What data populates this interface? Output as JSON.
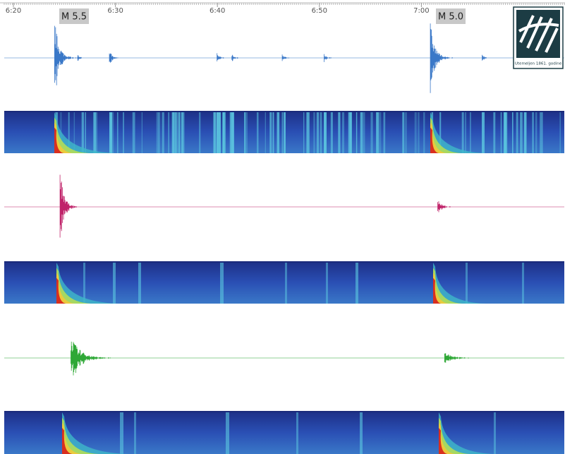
{
  "time_axis": {
    "ticks": [
      "6:20",
      "6:30",
      "6:40",
      "6:50",
      "7:00"
    ]
  },
  "events": [
    {
      "label": "M 5.5"
    },
    {
      "label": "M 5.0"
    }
  ],
  "logo": {
    "caption": "Utemeljen 1861. godine"
  }
}
